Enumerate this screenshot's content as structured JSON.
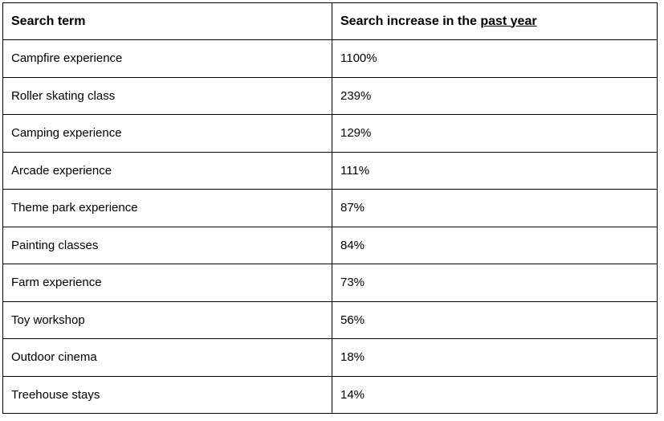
{
  "colors": {
    "background": "#ffffff",
    "border": "#000000",
    "text": "#000000"
  },
  "table": {
    "header": {
      "term_label": "Search term",
      "increase_label_prefix": "Search increase in the ",
      "increase_label_underlined": "past year"
    },
    "rows": [
      {
        "term": "Campfire experience",
        "increase": "1100%"
      },
      {
        "term": "Roller skating class",
        "increase": "239%"
      },
      {
        "term": "Camping experience",
        "increase": "129%"
      },
      {
        "term": "Arcade experience",
        "increase": "111%"
      },
      {
        "term": "Theme park experience",
        "increase": "87%"
      },
      {
        "term": "Painting classes",
        "increase": "84%"
      },
      {
        "term": "Farm experience",
        "increase": "73%"
      },
      {
        "term": "Toy workshop",
        "increase": "56%"
      },
      {
        "term": "Outdoor cinema",
        "increase": "18%"
      },
      {
        "term": "Treehouse stays",
        "increase": "14%"
      }
    ]
  },
  "chart_data": {
    "type": "table",
    "title": "Search increase in the past year",
    "columns": [
      "Search term",
      "Search increase in the past year"
    ],
    "categories": [
      "Campfire experience",
      "Roller skating class",
      "Camping experience",
      "Arcade experience",
      "Theme park experience",
      "Painting classes",
      "Farm experience",
      "Toy workshop",
      "Outdoor cinema",
      "Treehouse stays"
    ],
    "values": [
      1100,
      239,
      129,
      111,
      87,
      84,
      73,
      56,
      18,
      14
    ],
    "value_unit": "%"
  }
}
